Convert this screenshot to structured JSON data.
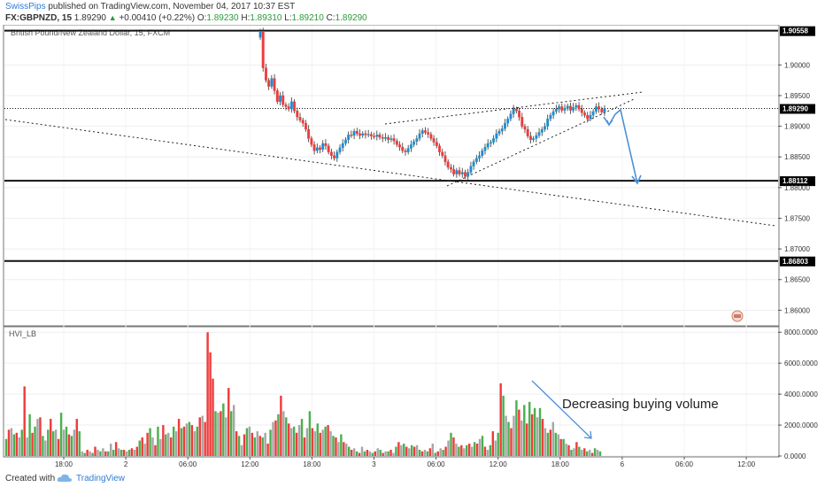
{
  "header": {
    "author": "SwissPips",
    "published": " published on TradingView.com, November 04, 2017 10:37 EST",
    "symbol": "FX:GBPNZD, 15",
    "last": "1.89290",
    "arrow": "▲",
    "change": "+0.00410 (+0.22%)",
    "o_label": "O:",
    "o_value": "1.89230",
    "h_label": "H:",
    "h_value": "1.89310",
    "l_label": "L:",
    "l_value": "1.89210",
    "c_label": "C:",
    "c_value": "1.89290"
  },
  "pane_title": "British Pound/New Zealand Dollar, 15, FXCM",
  "indicator_title": "HVI_LB",
  "annotation": "Decreasing buying volume",
  "footer": {
    "created": "Created with",
    "brand": "TradingView"
  },
  "colors": {
    "up": "#4caf50",
    "down": "#ef3b3b",
    "neutral": "#a6a6a6",
    "arrow": "#4a90d9",
    "price_badge": "#000000"
  },
  "chart_data": {
    "type": "candlestick",
    "price_axis": {
      "ticks": [
        "1.90000",
        "1.89500",
        "1.89000",
        "1.88500",
        "1.88000",
        "1.87500",
        "1.87000",
        "1.86500",
        "1.86000"
      ],
      "tick_values": [
        1.9,
        1.895,
        1.89,
        1.885,
        1.88,
        1.875,
        1.87,
        1.865,
        1.86
      ],
      "range": [
        1.8576,
        1.9064
      ]
    },
    "volume_axis": {
      "ticks": [
        "8000.0000",
        "6000.0000",
        "4000.0000",
        "2000.0000",
        "0.0000"
      ],
      "tick_values": [
        8000,
        6000,
        4000,
        2000,
        0
      ],
      "range": [
        0,
        8300
      ]
    },
    "time_axis": {
      "labels": [
        "18:00",
        "2",
        "06:00",
        "12:00",
        "18:00",
        "3",
        "06:00",
        "12:00",
        "18:00",
        "6",
        "06:00",
        "12:00"
      ]
    },
    "levels": [
      {
        "value": 1.90558,
        "label": "1.90558"
      },
      {
        "value": 1.8929,
        "label": "1.89290",
        "style": "dotted"
      },
      {
        "value": 1.88112,
        "label": "1.88112"
      },
      {
        "value": 1.86803,
        "label": "1.86803"
      }
    ],
    "candles_close": [
      1.9055,
      1.8995,
      1.8975,
      1.8965,
      1.8978,
      1.8958,
      1.894,
      1.895,
      1.8935,
      1.8932,
      1.8928,
      1.894,
      1.8925,
      1.8915,
      1.891,
      1.8905,
      1.8895,
      1.888,
      1.887,
      1.886,
      1.8865,
      1.8862,
      1.8872,
      1.8868,
      1.8858,
      1.8852,
      1.8848,
      1.8858,
      1.8865,
      1.8872,
      1.8878,
      1.8886,
      1.8885,
      1.8892,
      1.8888,
      1.8885,
      1.8888,
      1.8886,
      1.8887,
      1.8884,
      1.8883,
      1.8886,
      1.8882,
      1.888,
      1.8882,
      1.8878,
      1.888,
      1.8876,
      1.887,
      1.8866,
      1.886,
      1.8858,
      1.8864,
      1.887,
      1.8875,
      1.888,
      1.8888,
      1.8893,
      1.889,
      1.8887,
      1.888,
      1.8874,
      1.8868,
      1.8858,
      1.8852,
      1.8842,
      1.8833,
      1.883,
      1.8822,
      1.8828,
      1.8822,
      1.8825,
      1.8818,
      1.8825,
      1.8835,
      1.8842,
      1.8848,
      1.8852,
      1.886,
      1.8866,
      1.8872,
      1.8874,
      1.888,
      1.8888,
      1.8892,
      1.8896,
      1.8905,
      1.8912,
      1.892,
      1.8928,
      1.8925,
      1.8915,
      1.89,
      1.8895,
      1.8884,
      1.8878,
      1.888,
      1.8885,
      1.889,
      1.8895,
      1.89,
      1.8912,
      1.8918,
      1.8924,
      1.8928,
      1.8932,
      1.8926,
      1.8929,
      1.8933,
      1.8926,
      1.8931,
      1.8934,
      1.8928,
      1.8922,
      1.8918,
      1.8912,
      1.8918,
      1.8924,
      1.8932,
      1.8928,
      1.8923,
      1.8929
    ],
    "candles_open_first": 1.9045,
    "volume_values": [
      1100,
      1700,
      1800,
      1400,
      1500,
      1200,
      1700,
      4500,
      1200,
      2700,
      1500,
      1900,
      2400,
      2500,
      1300,
      1000,
      1700,
      2400,
      1600,
      1700,
      1100,
      2800,
      1700,
      1900,
      1400,
      1300,
      1700,
      2400,
      1600,
      300,
      200,
      400,
      300,
      200,
      600,
      400,
      300,
      500,
      300,
      300,
      800,
      400,
      900,
      500,
      400,
      400,
      300,
      400,
      500,
      400,
      600,
      1000,
      1200,
      800,
      1500,
      1800,
      1200,
      700,
      1900,
      1100,
      2000,
      1400,
      1500,
      1200,
      1900,
      1600,
      2400,
      1800,
      1900,
      2100,
      2200,
      2000,
      1600,
      1900,
      2500,
      2600,
      2200,
      8000,
      6700,
      5000,
      2900,
      2800,
      2900,
      3400,
      2500,
      4400,
      2900,
      3300,
      1600,
      1300,
      700,
      1400,
      1800,
      1900,
      1500,
      1200,
      1600,
      1300,
      1200,
      1500,
      800,
      1700,
      2200,
      2300,
      2700,
      3900,
      2900,
      2500,
      2100,
      1800,
      1900,
      1500,
      2000,
      2400,
      1200,
      1800,
      2900,
      1800,
      1600,
      2100,
      1500,
      1700,
      1900,
      2000,
      1600,
      1300,
      1200,
      900,
      1400,
      900,
      800,
      600,
      400,
      500,
      300,
      200,
      600,
      300,
      400,
      300,
      200,
      300,
      500,
      400,
      200,
      300,
      300,
      400,
      200,
      600,
      900,
      700,
      800,
      600,
      500,
      700,
      600,
      700,
      400,
      300,
      400,
      300,
      500,
      800,
      200,
      300,
      500,
      400,
      600,
      1000,
      1500,
      1200,
      800,
      600,
      700,
      500,
      700,
      800,
      600,
      900,
      800,
      1100,
      1300,
      600,
      400,
      700,
      1600,
      1000,
      1500,
      4700,
      3900,
      2600,
      2200,
      1800,
      2600,
      3600,
      3000,
      2300,
      3300,
      2100,
      3500,
      2700,
      3100,
      2500,
      3100,
      2400,
      1800,
      1500,
      1700,
      2200,
      1500,
      1400,
      1100,
      1100,
      800,
      700,
      400,
      500,
      900,
      600,
      400,
      500,
      300,
      400,
      200,
      500,
      400,
      300
    ],
    "volume_colors": [
      "g",
      "r",
      "n",
      "g",
      "r",
      "n",
      "g",
      "r",
      "n",
      "g",
      "r",
      "g",
      "n",
      "r",
      "g",
      "n",
      "g",
      "r",
      "g",
      "n",
      "r",
      "g",
      "n",
      "g",
      "r",
      "g",
      "n",
      "r",
      "g",
      "n",
      "g",
      "r",
      "n",
      "g",
      "r",
      "n",
      "g",
      "n",
      "r",
      "g",
      "n",
      "g",
      "r",
      "n",
      "g",
      "r",
      "n",
      "g",
      "r",
      "n",
      "r",
      "g",
      "r",
      "n",
      "r",
      "g",
      "n",
      "r",
      "g",
      "n",
      "r",
      "g",
      "n",
      "r",
      "g",
      "n",
      "r",
      "g",
      "r",
      "n",
      "g",
      "r",
      "n",
      "g",
      "r",
      "n",
      "r",
      "r",
      "r",
      "r",
      "g",
      "n",
      "r",
      "g",
      "n",
      "r",
      "g",
      "n",
      "r",
      "g",
      "n",
      "r",
      "g",
      "n",
      "r",
      "g",
      "n",
      "r",
      "g",
      "n",
      "r",
      "g",
      "n",
      "r",
      "g",
      "r",
      "n",
      "g",
      "r",
      "n",
      "g",
      "r",
      "n",
      "g",
      "r",
      "n",
      "g",
      "r",
      "n",
      "g",
      "r",
      "n",
      "g",
      "r",
      "n",
      "g",
      "r",
      "n",
      "g",
      "r",
      "n",
      "g",
      "r",
      "n",
      "g",
      "r",
      "n",
      "g",
      "r",
      "n",
      "g",
      "r",
      "n",
      "g",
      "r",
      "n",
      "g",
      "r",
      "n",
      "g",
      "r",
      "n",
      "g",
      "r",
      "n",
      "g",
      "r",
      "n",
      "g",
      "r",
      "n",
      "g",
      "r",
      "n",
      "g",
      "r",
      "n",
      "g",
      "r",
      "n",
      "g",
      "r",
      "n",
      "g",
      "r",
      "n",
      "g",
      "r",
      "n",
      "g",
      "r",
      "n",
      "g",
      "r",
      "n",
      "g",
      "r",
      "n",
      "g",
      "r",
      "g",
      "n",
      "g",
      "r",
      "n",
      "g",
      "r",
      "n",
      "g",
      "r",
      "g",
      "r",
      "g",
      "n",
      "g",
      "r",
      "n",
      "g",
      "r",
      "n",
      "g",
      "n",
      "r",
      "g",
      "n",
      "r",
      "g",
      "n",
      "r",
      "g",
      "n",
      "r",
      "g",
      "n",
      "r",
      "g",
      "n",
      "g"
    ]
  }
}
